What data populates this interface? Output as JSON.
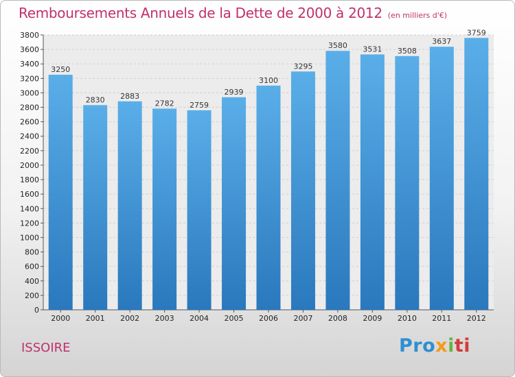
{
  "header": {
    "title": "Remboursements Annuels de la Dette de 2000 à 2012",
    "subtitle": "(en milliers d'€)"
  },
  "footer": {
    "place": "ISSOIRE",
    "logo": [
      "Pro",
      "x",
      "i",
      "ti"
    ]
  },
  "colors": {
    "title": "#c0306a",
    "bar_top": "#5aaee8",
    "bar_bottom": "#2a78bd"
  },
  "chart_data": {
    "type": "bar",
    "categories": [
      "2000",
      "2001",
      "2002",
      "2003",
      "2004",
      "2005",
      "2006",
      "2007",
      "2008",
      "2009",
      "2010",
      "2011",
      "2012"
    ],
    "values": [
      3250,
      2830,
      2883,
      2782,
      2759,
      2939,
      3100,
      3295,
      3580,
      3531,
      3508,
      3637,
      3759
    ],
    "title": "Remboursements Annuels de la Dette de 2000 à 2012",
    "subtitle": "(en milliers d'€)",
    "xlabel": "",
    "ylabel": "",
    "ylim": [
      0,
      3800
    ],
    "ytick_step": 200,
    "grid": true,
    "legend": "none"
  }
}
